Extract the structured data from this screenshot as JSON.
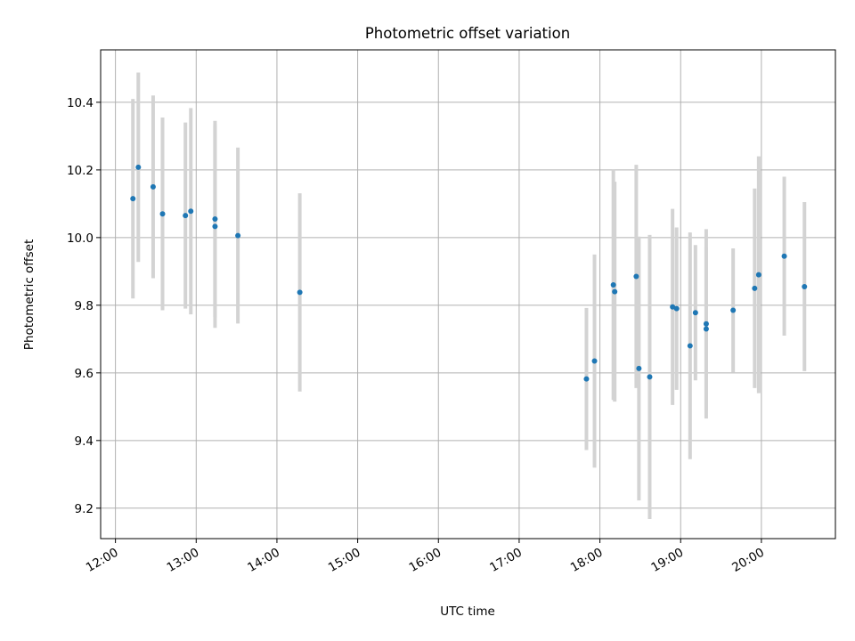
{
  "chart_data": {
    "type": "scatter",
    "title": "Photometric offset variation",
    "xlabel": "UTC time",
    "ylabel": "Photometric offset",
    "x_ticks": [
      "12:00",
      "13:00",
      "14:00",
      "15:00",
      "16:00",
      "17:00",
      "18:00",
      "19:00",
      "20:00"
    ],
    "y_ticks": [
      "9.2",
      "9.4",
      "9.6",
      "9.8",
      "10.0",
      "10.2",
      "10.4"
    ],
    "xlim": [
      "11:49",
      "20:55"
    ],
    "ylim": [
      9.11,
      10.555
    ],
    "grid": true,
    "legend": "none",
    "colors": {
      "points": "#1f77b4",
      "errorbars": "#d3d3d3",
      "grid": "#b0b0b0",
      "axes": "#000000"
    },
    "series": [
      {
        "points": [
          {
            "x": "12:13",
            "y": 10.115,
            "err": 0.295
          },
          {
            "x": "12:17",
            "y": 10.208,
            "err": 0.28
          },
          {
            "x": "12:28",
            "y": 10.15,
            "err": 0.27
          },
          {
            "x": "12:35",
            "y": 10.07,
            "err": 0.285
          },
          {
            "x": "12:52",
            "y": 10.065,
            "err": 0.275
          },
          {
            "x": "12:56",
            "y": 10.078,
            "err": 0.305
          },
          {
            "x": "13:14",
            "y": 10.055,
            "err": 0.29
          },
          {
            "x": "13:14",
            "y": 10.033,
            "err": 0.3
          },
          {
            "x": "13:31",
            "y": 10.006,
            "err": 0.26
          },
          {
            "x": "14:17",
            "y": 9.838,
            "err": 0.293
          },
          {
            "x": "17:50",
            "y": 9.582,
            "err": 0.21
          },
          {
            "x": "17:56",
            "y": 9.635,
            "err": 0.315
          },
          {
            "x": "18:10",
            "y": 9.86,
            "err": 0.34
          },
          {
            "x": "18:11",
            "y": 9.84,
            "err": 0.325
          },
          {
            "x": "18:27",
            "y": 9.885,
            "err": 0.33
          },
          {
            "x": "18:29",
            "y": 9.613,
            "err": 0.39
          },
          {
            "x": "18:37",
            "y": 9.588,
            "err": 0.42
          },
          {
            "x": "18:54",
            "y": 9.795,
            "err": 0.29
          },
          {
            "x": "18:57",
            "y": 9.79,
            "err": 0.24
          },
          {
            "x": "19:07",
            "y": 9.68,
            "err": 0.335
          },
          {
            "x": "19:11",
            "y": 9.778,
            "err": 0.2
          },
          {
            "x": "19:19",
            "y": 9.745,
            "err": 0.28
          },
          {
            "x": "19:19",
            "y": 9.73,
            "err": 0.24
          },
          {
            "x": "19:39",
            "y": 9.785,
            "err": 0.183
          },
          {
            "x": "19:55",
            "y": 9.85,
            "err": 0.295
          },
          {
            "x": "19:58",
            "y": 9.89,
            "err": 0.35
          },
          {
            "x": "20:17",
            "y": 9.945,
            "err": 0.235
          },
          {
            "x": "20:32",
            "y": 9.855,
            "err": 0.25
          }
        ]
      }
    ]
  }
}
